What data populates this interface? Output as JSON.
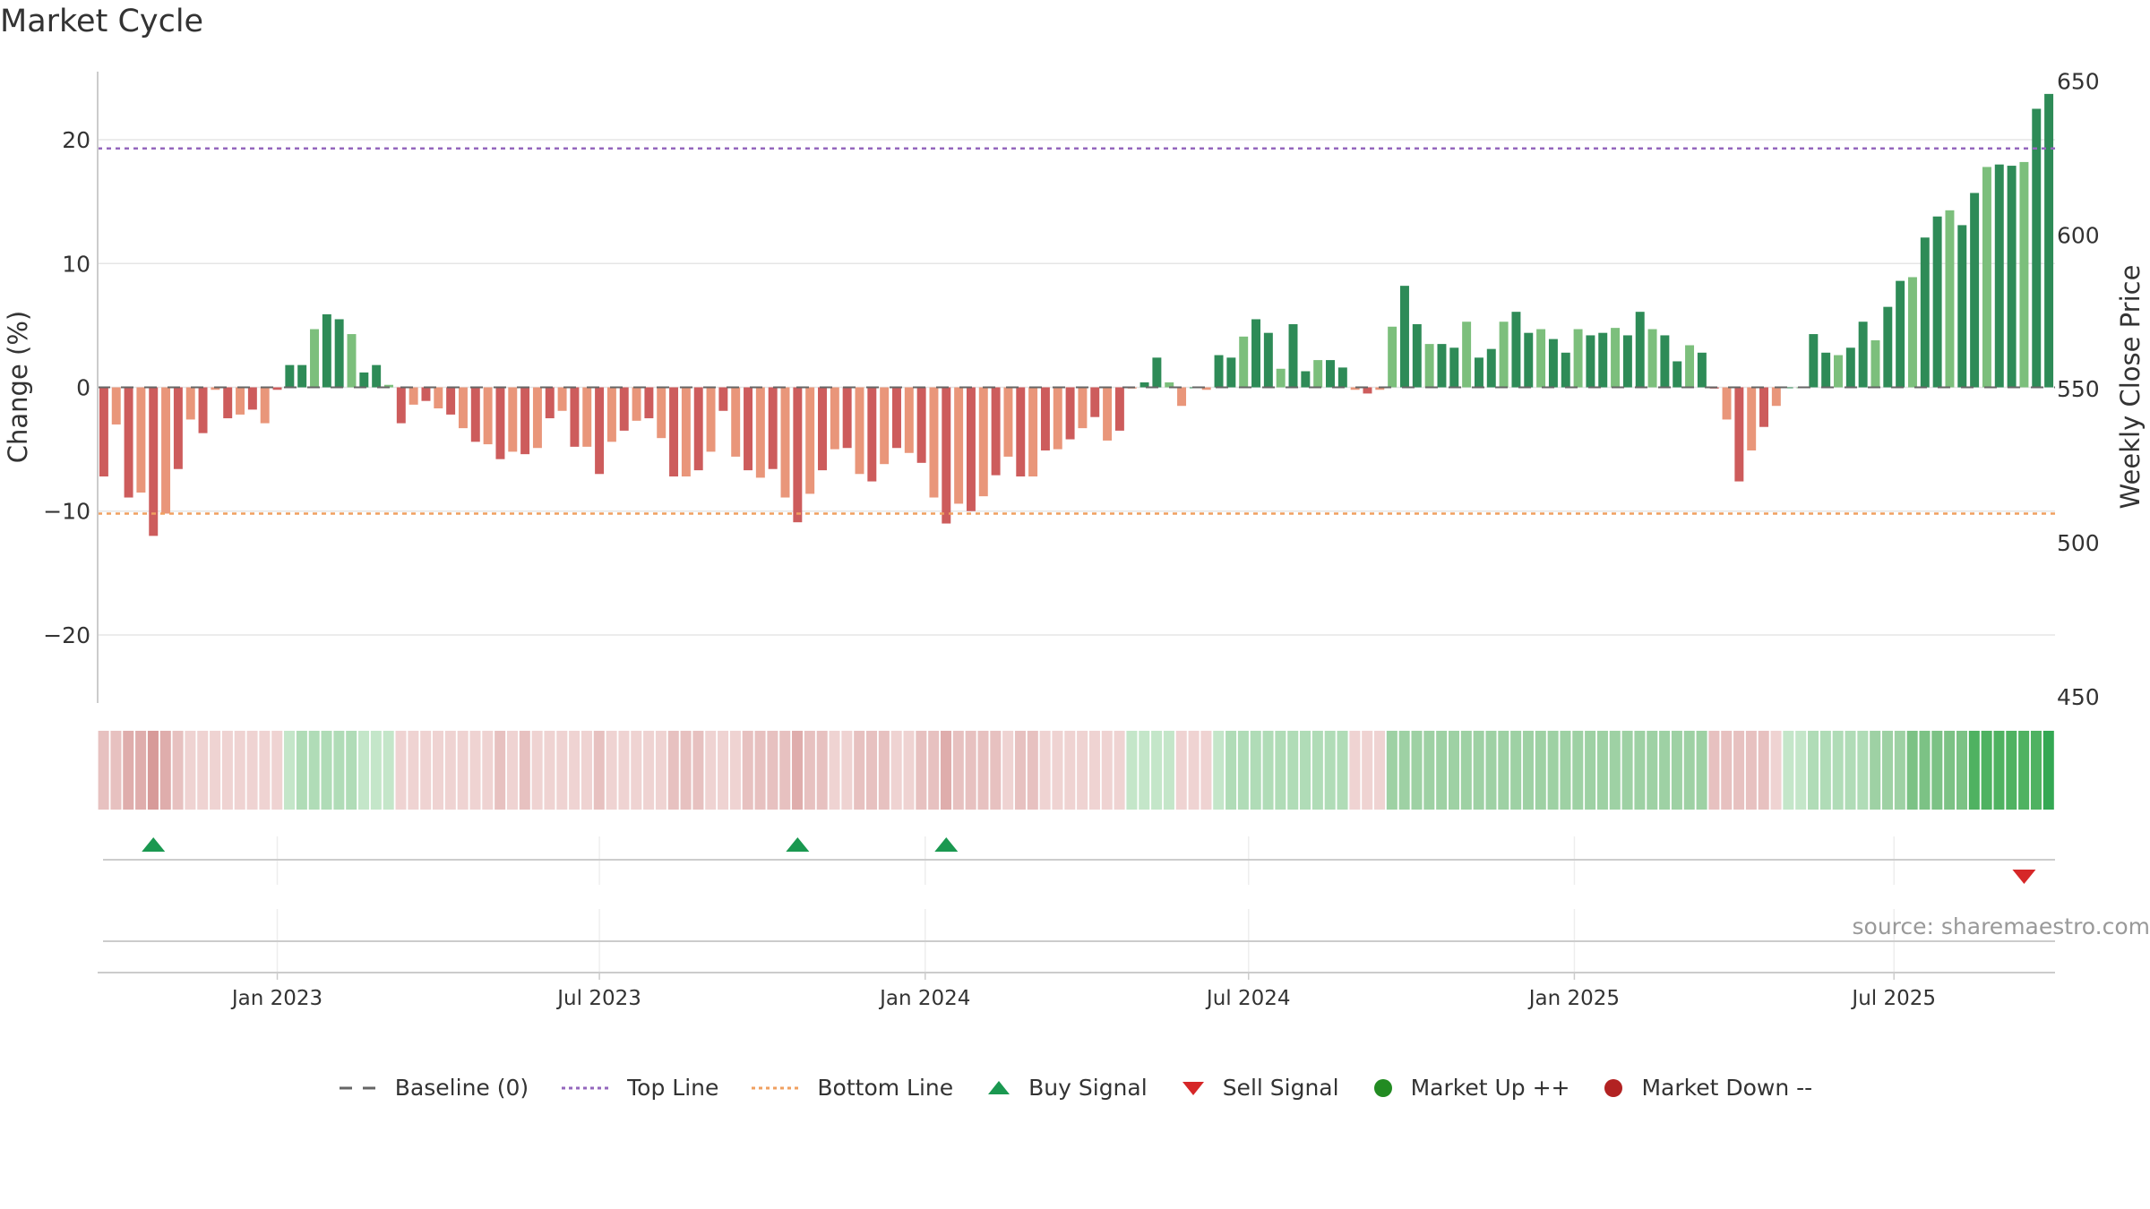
{
  "title": "Market Cycle",
  "source": "source: sharemaestro.com",
  "colors": {
    "up_dark": "#2e8b57",
    "up_light": "#7cbf7c",
    "down_dark": "#cd5c5c",
    "down_light": "#e9967a",
    "top_line": "#9467bd",
    "bottom_line": "#f0a060",
    "buy": "#1a9850",
    "sell": "#d62728",
    "market_up": "#228b22",
    "market_down": "#b22222"
  },
  "legend": [
    {
      "label": "Baseline (0)",
      "icon": "dash-line"
    },
    {
      "label": "Top Line",
      "icon": "dotted-purple-line"
    },
    {
      "label": "Bottom Line",
      "icon": "dotted-orange-line"
    },
    {
      "label": "Buy Signal",
      "icon": "up-triangle"
    },
    {
      "label": "Sell Signal",
      "icon": "down-triangle"
    },
    {
      "label": "Market Up ++",
      "icon": "green-dot"
    },
    {
      "label": "Market Down --",
      "icon": "red-dot"
    }
  ],
  "chart_data": {
    "type": "bar",
    "ylabel": "Change (%)",
    "y2label": "Weekly Close Price",
    "ylim": [
      -25.5,
      25.5
    ],
    "y2lim": [
      448,
      653
    ],
    "yticks": [
      -20,
      -10,
      0,
      10,
      20
    ],
    "ytick_labels": [
      "−20",
      "−10",
      "0",
      "10",
      "20"
    ],
    "y2ticks": [
      450,
      500,
      550,
      600,
      650
    ],
    "top_line": 19.3,
    "bottom_line": -10.2,
    "x_ticks": [
      {
        "label": "Jan 2023",
        "week": 14.5
      },
      {
        "label": "Jul 2023",
        "week": 40.5
      },
      {
        "label": "Jan 2024",
        "week": 66.8
      },
      {
        "label": "Jul 2024",
        "week": 92.9
      },
      {
        "label": "Jan 2025",
        "week": 119.2
      },
      {
        "label": "Jul 2025",
        "week": 145.0
      }
    ],
    "values": [
      -7.2,
      -3,
      -8.9,
      -8.5,
      -12,
      -10.2,
      -6.6,
      -2.6,
      -3.7,
      -0.2,
      -2.5,
      -2.2,
      -1.8,
      -2.9,
      -0.2,
      1.8,
      1.8,
      4.7,
      5.9,
      5.5,
      4.3,
      1.2,
      1.8,
      0.2,
      -2.9,
      -1.4,
      -1.1,
      -1.7,
      -2.2,
      -3.3,
      -4.4,
      -4.6,
      -5.8,
      -5.2,
      -5.4,
      -4.9,
      -2.5,
      -1.9,
      -4.8,
      -4.8,
      -7,
      -4.4,
      -3.5,
      -2.7,
      -2.5,
      -4.1,
      -7.2,
      -7.2,
      -6.7,
      -5.2,
      -1.9,
      -5.6,
      -6.7,
      -7.3,
      -6.6,
      -8.9,
      -10.9,
      -8.6,
      -6.7,
      -5,
      -4.9,
      -7,
      -7.6,
      -6.2,
      -4.9,
      -5.3,
      -6.1,
      -8.9,
      -11,
      -9.4,
      -10,
      -8.8,
      -7.1,
      -5.6,
      -7.2,
      -7.2,
      -5.1,
      -5,
      -4.2,
      -3.3,
      -2.4,
      -4.3,
      -3.5,
      -0.1,
      0.4,
      2.4,
      0.4,
      -1.5,
      0,
      -0.2,
      2.6,
      2.4,
      4.1,
      5.5,
      4.4,
      1.5,
      5.1,
      1.3,
      2.2,
      2.2,
      1.6,
      -0.2,
      -0.5,
      -0.2,
      4.9,
      8.2,
      5.1,
      3.5,
      3.5,
      3.2,
      5.3,
      2.4,
      3.1,
      5.3,
      6.1,
      4.4,
      4.7,
      3.9,
      2.8,
      4.7,
      4.2,
      4.4,
      4.8,
      4.2,
      6.1,
      4.7,
      4.2,
      2.1,
      3.4,
      2.8,
      -0.1,
      -2.6,
      -7.6,
      -5.1,
      -3.2,
      -1.5,
      0,
      0,
      4.3,
      2.8,
      2.6,
      3.2,
      5.3,
      3.8,
      6.5,
      8.6,
      8.9,
      12.1,
      13.8,
      14.3,
      13.1,
      15.7,
      17.8,
      18,
      17.9,
      18.2,
      22.5,
      23.7
    ],
    "buy_signals": [
      4,
      56,
      68
    ],
    "sell_signals": [
      155
    ],
    "heat_strip": [
      -2,
      -2,
      -3,
      -3,
      -4,
      -3,
      -2,
      -1,
      -1,
      -1,
      -1,
      -1,
      -1,
      -1,
      -1,
      1,
      2,
      2,
      2,
      2,
      2,
      1,
      1,
      1,
      -1,
      -1,
      -1,
      -1,
      -1,
      -1,
      -1,
      -1,
      -2,
      -1,
      -2,
      -1,
      -1,
      -1,
      -1,
      -1,
      -2,
      -1,
      -1,
      -1,
      -1,
      -1,
      -2,
      -2,
      -2,
      -1,
      -1,
      -1,
      -2,
      -2,
      -2,
      -2,
      -3,
      -2,
      -2,
      -1,
      -1,
      -2,
      -2,
      -2,
      -1,
      -1,
      -2,
      -2,
      -3,
      -2,
      -2,
      -2,
      -2,
      -1,
      -2,
      -2,
      -1,
      -1,
      -1,
      -1,
      -1,
      -1,
      -1,
      1,
      1,
      1,
      1,
      -1,
      -1,
      -1,
      1,
      2,
      2,
      2,
      2,
      2,
      2,
      2,
      2,
      2,
      2,
      -1,
      -1,
      -1,
      3,
      3,
      3,
      3,
      3,
      3,
      3,
      3,
      3,
      3,
      3,
      3,
      3,
      3,
      3,
      3,
      3,
      3,
      3,
      3,
      3,
      3,
      3,
      3,
      3,
      3,
      -2,
      -2,
      -2,
      -2,
      -2,
      -1,
      1,
      1,
      2,
      2,
      2,
      2,
      2,
      3,
      3,
      3,
      4,
      4,
      4,
      4,
      4,
      5,
      5,
      5,
      5,
      5,
      5,
      6
    ]
  }
}
